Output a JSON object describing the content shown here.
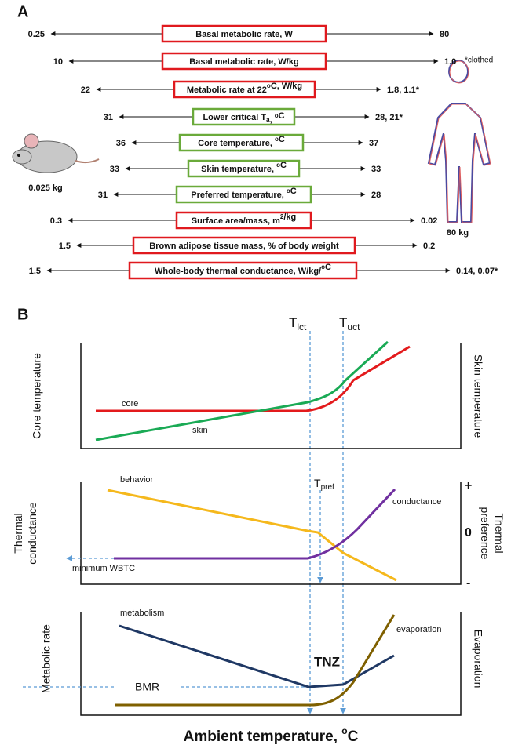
{
  "panel_a": {
    "label": "A",
    "note": "*clothed",
    "mouse_mass": "0.025 kg",
    "human_mass": "80 kg",
    "rows": [
      {
        "left": "0.25",
        "label": [
          "Basal metabolic rate, W"
        ],
        "right": "80",
        "box_color": "#e0191e"
      },
      {
        "left": "10",
        "label": [
          "Basal metabolic rate, W/kg"
        ],
        "right": "1.0",
        "box_color": "#e0191e"
      },
      {
        "left": "22",
        "label": [
          "Metabolic rate at 22",
          {
            "sup": "o"
          },
          "C, W/kg"
        ],
        "right": "1.8, 1.1*",
        "box_color": "#e0191e"
      },
      {
        "left": "31",
        "label": [
          "Lower critical T",
          {
            "sub": "a"
          },
          ", ",
          {
            "sup": "o"
          },
          "C"
        ],
        "right": "28, 21*",
        "box_color": "#6aaa3a"
      },
      {
        "left": "36",
        "label": [
          "Core temperature, ",
          {
            "sup": "o"
          },
          "C"
        ],
        "right": "37",
        "box_color": "#6aaa3a"
      },
      {
        "left": "33",
        "label": [
          "Skin temperature, ",
          {
            "sup": "o"
          },
          "C"
        ],
        "right": "33",
        "box_color": "#6aaa3a"
      },
      {
        "left": "31",
        "label": [
          "Preferred temperature, ",
          {
            "sup": "o"
          },
          "C"
        ],
        "right": "28",
        "box_color": "#6aaa3a"
      },
      {
        "left": "0.3",
        "label": [
          "Surface area/mass, m",
          {
            "sup": "2"
          },
          "/kg"
        ],
        "right": "0.02",
        "box_color": "#e0191e"
      },
      {
        "left": "1.5",
        "label": [
          "Brown adipose tissue mass, % of body weight"
        ],
        "right": "0.2",
        "box_color": "#e0191e"
      },
      {
        "left": "1.5",
        "label": [
          "Whole-body thermal conductance, W/kg/",
          {
            "sup": "o"
          },
          "C"
        ],
        "right": "0.14, 0.07*",
        "box_color": "#e0191e"
      }
    ]
  },
  "panel_b": {
    "label": "B",
    "t_lct": [
      "T",
      {
        "sub": "lct"
      }
    ],
    "t_uct": [
      "T",
      {
        "sub": "uct"
      }
    ],
    "t_pref": [
      "T",
      {
        "sub": "pref"
      }
    ],
    "top": {
      "y_left": "Core temperature",
      "y_right": "Skin temperature",
      "core": "core",
      "skin": "skin"
    },
    "middle": {
      "y_left": [
        "Thermal",
        "conductance"
      ],
      "y_right": [
        "Thermal",
        "preference"
      ],
      "plus": "+",
      "zero": "0",
      "minus": "-",
      "behavior": "behavior",
      "conductance": "conductance",
      "minimum": "minimum WBTC"
    },
    "bottom": {
      "y_left": "Metabolic rate",
      "y_right": "Evaporation",
      "metabolism": "metabolism",
      "evaporation": "evaporation",
      "bmr": "BMR",
      "tnz": "TNZ"
    },
    "x_label": [
      "Ambient temperature, ",
      {
        "sup": "o"
      },
      "C"
    ]
  }
}
